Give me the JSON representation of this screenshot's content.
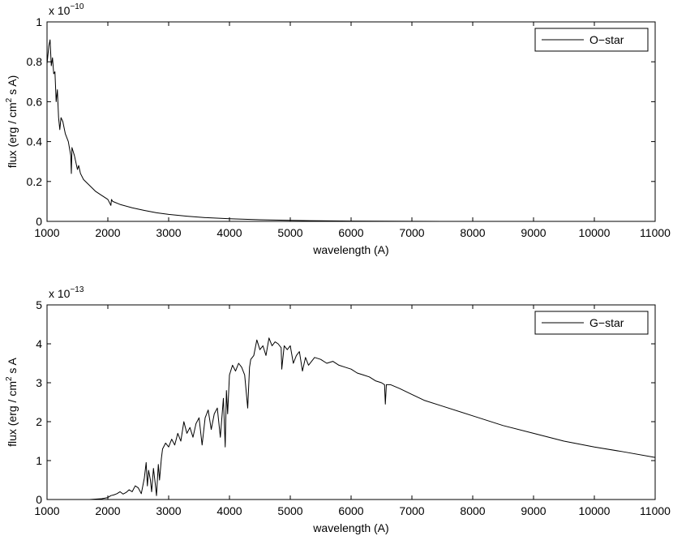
{
  "chart_data": [
    {
      "type": "line",
      "title": "",
      "xlabel": "wavelength (A)",
      "ylabel": "flux (erg / cm² s A)",
      "ylabel_parts": {
        "pre": "flux (erg / cm",
        "sup": "2",
        "post": " s A)"
      },
      "y_exponent_label": {
        "base": "x 10",
        "exp": "−10"
      },
      "xlim": [
        1000,
        11000
      ],
      "ylim": [
        0,
        1
      ],
      "xticks": [
        1000,
        2000,
        3000,
        4000,
        5000,
        6000,
        7000,
        8000,
        9000,
        10000,
        11000
      ],
      "xtick_labels": [
        "1000",
        "2000",
        "3000",
        "4000",
        "5000",
        "6000",
        "7000",
        "8000",
        "9000",
        "10000",
        "11000"
      ],
      "yticks": [
        0,
        0.2,
        0.4,
        0.6,
        0.8,
        1
      ],
      "ytick_labels": [
        "0",
        "0.2",
        "0.4",
        "0.6",
        "0.8",
        "1"
      ],
      "grid": false,
      "legend_position": "top-right",
      "series": [
        {
          "name": "O-star",
          "color": "#000000",
          "x": [
            1000,
            1030,
            1050,
            1070,
            1090,
            1110,
            1130,
            1150,
            1170,
            1190,
            1210,
            1230,
            1260,
            1300,
            1350,
            1390,
            1400,
            1410,
            1450,
            1500,
            1520,
            1550,
            1600,
            1700,
            1800,
            1900,
            2000,
            2050,
            2060,
            2080,
            2200,
            2400,
            2600,
            2800,
            3000,
            3300,
            3600,
            4000,
            4500,
            5000,
            5500,
            6000,
            6500,
            7000,
            7500
          ],
          "y": [
            0.79,
            0.88,
            0.91,
            0.78,
            0.82,
            0.74,
            0.75,
            0.6,
            0.66,
            0.52,
            0.46,
            0.52,
            0.5,
            0.44,
            0.4,
            0.33,
            0.24,
            0.37,
            0.33,
            0.26,
            0.28,
            0.24,
            0.21,
            0.18,
            0.15,
            0.13,
            0.11,
            0.08,
            0.11,
            0.1,
            0.085,
            0.068,
            0.055,
            0.043,
            0.035,
            0.026,
            0.019,
            0.013,
            0.008,
            0.005,
            0.003,
            0.0015,
            0.0008,
            0.0003,
            0.0001
          ]
        }
      ]
    },
    {
      "type": "line",
      "title": "",
      "xlabel": "wavelength (A)",
      "ylabel": "flux (erg / cm² s A",
      "ylabel_parts": {
        "pre": "flux (erg / cm",
        "sup": "2",
        "post": " s A"
      },
      "y_exponent_label": {
        "base": "x 10",
        "exp": "−13"
      },
      "xlim": [
        1000,
        11000
      ],
      "ylim": [
        0,
        5
      ],
      "xticks": [
        1000,
        2000,
        3000,
        4000,
        5000,
        6000,
        7000,
        8000,
        9000,
        10000,
        11000
      ],
      "xtick_labels": [
        "1000",
        "2000",
        "3000",
        "4000",
        "5000",
        "6000",
        "7000",
        "8000",
        "9000",
        "10000",
        "11000"
      ],
      "yticks": [
        0,
        1,
        2,
        3,
        4,
        5
      ],
      "ytick_labels": [
        "0",
        "1",
        "2",
        "3",
        "4",
        "5"
      ],
      "grid": false,
      "legend_position": "top-right",
      "series": [
        {
          "name": "G-star",
          "color": "#000000",
          "x": [
            1700,
            1900,
            2000,
            2050,
            2100,
            2150,
            2200,
            2250,
            2300,
            2350,
            2400,
            2450,
            2500,
            2550,
            2600,
            2630,
            2650,
            2670,
            2700,
            2720,
            2750,
            2780,
            2800,
            2830,
            2850,
            2880,
            2900,
            2950,
            3000,
            3050,
            3100,
            3150,
            3200,
            3250,
            3300,
            3350,
            3400,
            3450,
            3500,
            3550,
            3600,
            3650,
            3700,
            3750,
            3800,
            3850,
            3900,
            3930,
            3950,
            3970,
            4000,
            4050,
            4100,
            4150,
            4200,
            4250,
            4300,
            4330,
            4350,
            4400,
            4450,
            4500,
            4550,
            4600,
            4650,
            4700,
            4750,
            4800,
            4850,
            4860,
            4900,
            4950,
            5000,
            5050,
            5100,
            5150,
            5200,
            5250,
            5300,
            5400,
            5500,
            5600,
            5700,
            5800,
            5900,
            6000,
            6100,
            6200,
            6300,
            6400,
            6500,
            6550,
            6563,
            6580,
            6650,
            6800,
            7000,
            7200,
            7500,
            8000,
            8500,
            9000,
            9500,
            10000,
            10500,
            11000
          ],
          "y": [
            0.0,
            0.02,
            0.05,
            0.1,
            0.12,
            0.15,
            0.2,
            0.14,
            0.18,
            0.25,
            0.2,
            0.35,
            0.3,
            0.15,
            0.55,
            0.95,
            0.35,
            0.75,
            0.5,
            0.2,
            0.8,
            0.4,
            0.1,
            0.9,
            0.5,
            1.05,
            1.3,
            1.45,
            1.35,
            1.55,
            1.4,
            1.7,
            1.5,
            2.0,
            1.7,
            1.85,
            1.6,
            1.95,
            2.1,
            1.4,
            2.1,
            2.3,
            1.8,
            2.2,
            2.35,
            1.6,
            2.6,
            1.35,
            2.8,
            2.2,
            3.2,
            3.45,
            3.3,
            3.5,
            3.4,
            3.2,
            2.35,
            3.4,
            3.6,
            3.7,
            4.1,
            3.85,
            3.95,
            3.7,
            4.15,
            3.95,
            4.05,
            4.0,
            3.9,
            3.35,
            3.95,
            3.85,
            3.95,
            3.5,
            3.7,
            3.8,
            3.3,
            3.65,
            3.45,
            3.65,
            3.6,
            3.5,
            3.55,
            3.45,
            3.4,
            3.35,
            3.25,
            3.2,
            3.15,
            3.05,
            3.0,
            2.95,
            2.45,
            2.95,
            2.95,
            2.85,
            2.7,
            2.55,
            2.4,
            2.15,
            1.9,
            1.7,
            1.5,
            1.35,
            1.22,
            1.08
          ]
        }
      ]
    }
  ]
}
